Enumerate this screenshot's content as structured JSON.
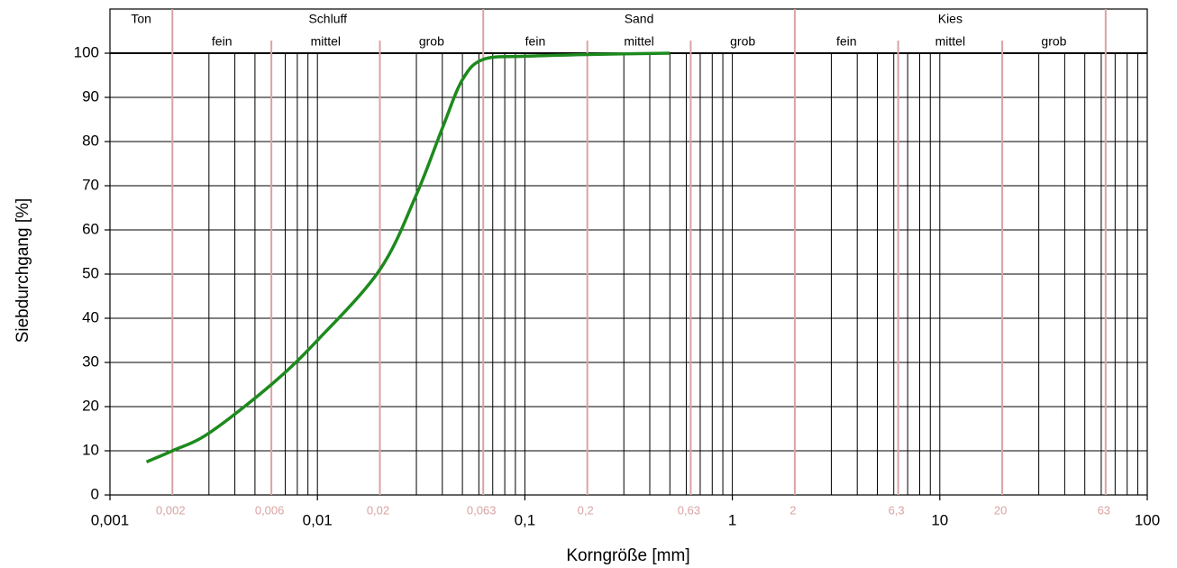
{
  "chart_data": {
    "type": "line",
    "x_label": "Korngröße [mm]",
    "y_label": "Siebdurchgang [%]",
    "log_x": true,
    "grid": true,
    "xlim": [
      0.001,
      100
    ],
    "ylim": [
      0,
      100
    ],
    "xticks": [
      {
        "value": 0.001,
        "label": "0,001"
      },
      {
        "value": 0.01,
        "label": "0,01"
      },
      {
        "value": 0.1,
        "label": "0,1"
      },
      1,
      10,
      100
    ],
    "yticks": [
      0,
      10,
      20,
      30,
      40,
      50,
      60,
      70,
      80,
      90,
      100
    ],
    "x_minor_grid": [
      0.002,
      0.003,
      0.004,
      0.005,
      0.006,
      0.007,
      0.008,
      0.009,
      0.02,
      0.03,
      0.04,
      0.05,
      0.06,
      0.07,
      0.08,
      0.09,
      0.2,
      0.3,
      0.4,
      0.5,
      0.6,
      0.7,
      0.8,
      0.9,
      2,
      3,
      4,
      5,
      6,
      7,
      8,
      9,
      20,
      30,
      40,
      50,
      60,
      70,
      80,
      90
    ],
    "boundary_color": "#d9a3a3",
    "boundaries": [
      {
        "value": 0.002,
        "label": "0,002"
      },
      {
        "value": 0.006,
        "label": "0,006"
      },
      {
        "value": 0.02,
        "label": "0,02"
      },
      {
        "value": 0.063,
        "label": "0,063"
      },
      {
        "value": 0.2,
        "label": "0,2"
      },
      {
        "value": 0.63,
        "label": "0,63"
      },
      {
        "value": 2,
        "label": "2"
      },
      {
        "value": 6.3,
        "label": "6,3"
      },
      {
        "value": 20,
        "label": "20"
      },
      {
        "value": 63,
        "label": "63"
      }
    ],
    "soil_classes": [
      {
        "name": "Ton"
      },
      {
        "name": "Schluff",
        "subdivisions": [
          "fein",
          "mittel",
          "grob"
        ]
      },
      {
        "name": "Sand",
        "subdivisions": [
          "fein",
          "mittel",
          "grob"
        ]
      },
      {
        "name": "Kies",
        "subdivisions": [
          "fein",
          "mittel",
          "grob"
        ]
      }
    ],
    "x": [
      0.0015,
      0.002,
      0.003,
      0.006,
      0.01,
      0.02,
      0.03,
      0.04,
      0.05,
      0.063,
      0.1,
      0.2,
      0.5
    ],
    "series": [
      {
        "color": "#1e8a1e",
        "values": [
          7.5,
          10,
          14,
          25,
          35,
          51,
          68,
          83,
          94,
          98.6,
          99.3,
          99.7,
          100
        ]
      }
    ]
  }
}
